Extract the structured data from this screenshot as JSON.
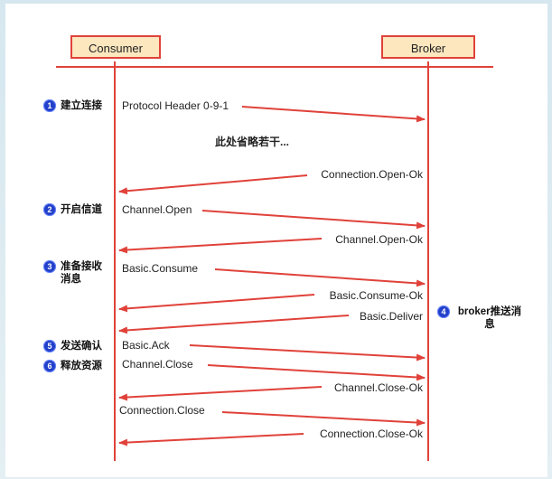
{
  "actors": {
    "consumer": "Consumer",
    "broker": "Broker"
  },
  "steps": [
    {
      "num": "1",
      "label": "建立连接"
    },
    {
      "num": "2",
      "label": "开启信道"
    },
    {
      "num": "3",
      "label": "准备接收消息"
    },
    {
      "num": "4",
      "label": "broker推送消息"
    },
    {
      "num": "5",
      "label": "发送确认"
    },
    {
      "num": "6",
      "label": "释放资源"
    }
  ],
  "note": "此处省略若干...",
  "messages": [
    {
      "label": "Protocol Header 0-9-1",
      "direction": "to-broker"
    },
    {
      "label": "Connection.Open-Ok",
      "direction": "to-consumer"
    },
    {
      "label": "Channel.Open",
      "direction": "to-broker"
    },
    {
      "label": "Channel.Open-Ok",
      "direction": "to-consumer"
    },
    {
      "label": "Basic.Consume",
      "direction": "to-broker"
    },
    {
      "label": "Basic.Consume-Ok",
      "direction": "to-consumer"
    },
    {
      "label": "Basic.Deliver",
      "direction": "to-consumer"
    },
    {
      "label": "Basic.Ack",
      "direction": "to-broker"
    },
    {
      "label": "Channel.Close",
      "direction": "to-broker"
    },
    {
      "label": "Channel.Close-Ok",
      "direction": "to-consumer"
    },
    {
      "label": "Connection.Close",
      "direction": "to-broker"
    },
    {
      "label": "Connection.Close-Ok",
      "direction": "to-consumer"
    }
  ],
  "colors": {
    "line": "#e0423a",
    "badge": "#2340c9",
    "actor_fill": "#fde7bf"
  }
}
